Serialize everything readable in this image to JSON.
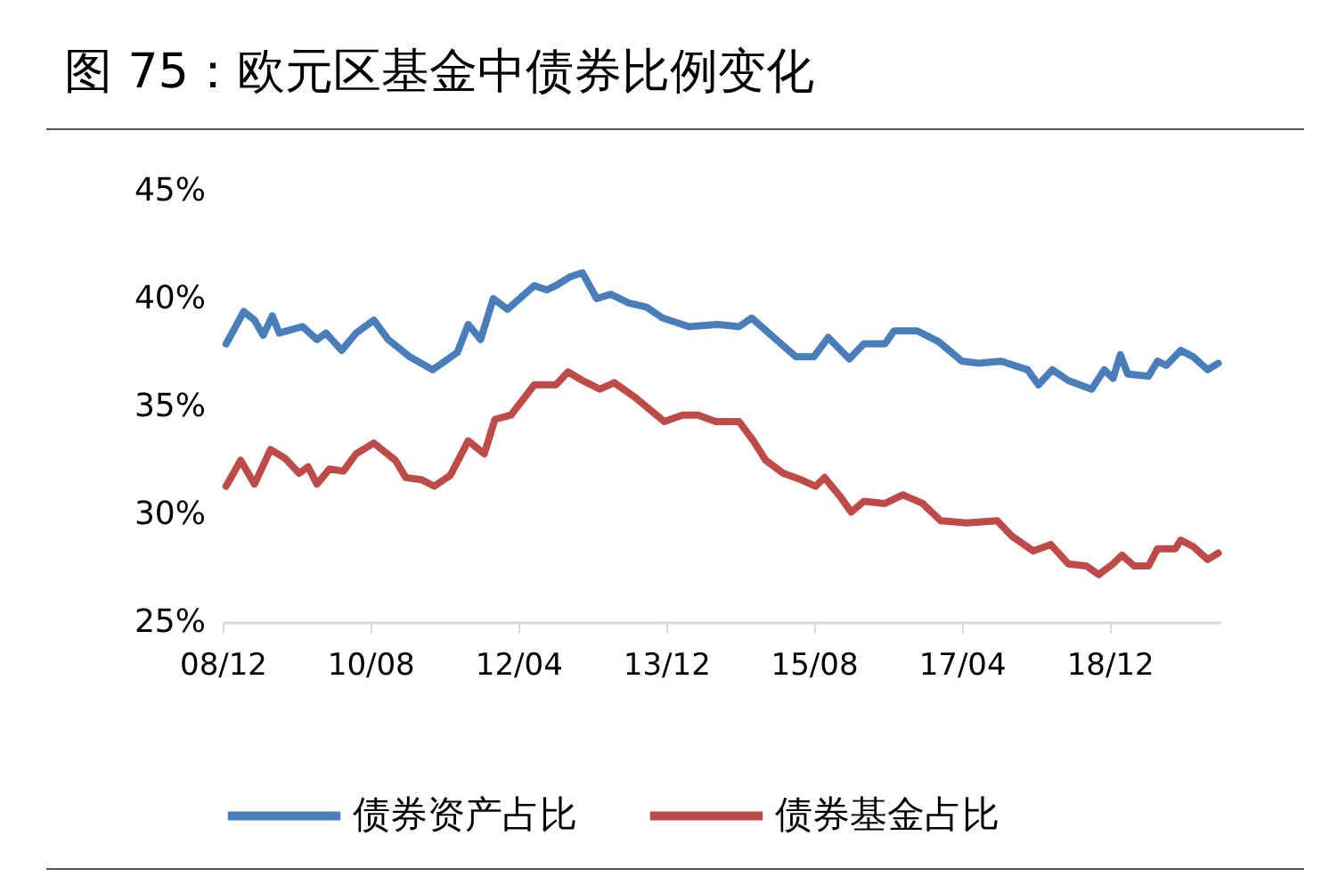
{
  "chart_data": {
    "type": "line",
    "title": "图 75：欧元区基金中债券比例变化",
    "xlim": [
      "2008-12-01",
      "2020-03-01"
    ],
    "xticks": [
      {
        "value": "2008-12",
        "label": "08/12"
      },
      {
        "value": "2010-08",
        "label": "10/08"
      },
      {
        "value": "2012-04",
        "label": "12/04"
      },
      {
        "value": "2013-12",
        "label": "13/12"
      },
      {
        "value": "2015-08",
        "label": "15/08"
      },
      {
        "value": "2017-04",
        "label": "17/04"
      },
      {
        "value": "2018-12",
        "label": "18/12"
      }
    ],
    "ylim": [
      25,
      45
    ],
    "yticks": [
      {
        "value": 25,
        "label": "25%"
      },
      {
        "value": 30,
        "label": "30%"
      },
      {
        "value": 35,
        "label": "35%"
      },
      {
        "value": 40,
        "label": "40%"
      },
      {
        "value": 45,
        "label": "45%"
      }
    ],
    "legend": "bottom",
    "line_style": "solid",
    "marker": "none",
    "series": [
      {
        "name": "债券资产占比",
        "color": "#4a7ebb",
        "x": [
          "2008-12-15",
          "2009-02-26",
          "2009-04-11",
          "2009-05-17",
          "2009-06-23",
          "2009-07-22",
          "2009-10-26",
          "2009-12-24",
          "2010-01-30",
          "2010-04-05",
          "2010-06-03",
          "2010-08-15",
          "2010-10-13",
          "2011-01-10",
          "2011-04-14",
          "2011-06-04",
          "2011-07-25",
          "2011-09-08",
          "2011-10-29",
          "2011-12-20",
          "2012-02-17",
          "2012-06-06",
          "2012-07-27",
          "2012-09-03",
          "2012-10-30",
          "2012-12-21",
          "2013-02-18",
          "2013-04-17",
          "2013-06-29",
          "2013-09-11",
          "2013-11-16",
          "2014-03-05",
          "2014-06-30",
          "2014-09-27",
          "2014-11-18",
          "2015-02-07",
          "2015-05-19",
          "2015-08-01",
          "2015-09-29",
          "2015-12-25",
          "2016-02-23",
          "2016-05-20",
          "2016-06-26",
          "2016-09-30",
          "2016-12-27",
          "2017-04-01",
          "2017-06-13",
          "2017-09-10",
          "2017-12-28",
          "2018-02-11",
          "2018-04-09",
          "2018-06-14",
          "2018-09-18",
          "2018-11-09",
          "2018-12-15",
          "2019-01-14",
          "2019-02-13",
          "2019-05-10",
          "2019-06-16",
          "2019-07-22",
          "2019-09-20",
          "2019-11-10",
          "2020-01-08",
          "2020-02-21"
        ],
        "values": [
          37.9,
          39.4,
          39.0,
          38.3,
          39.2,
          38.4,
          38.7,
          38.1,
          38.4,
          37.6,
          38.4,
          39.0,
          38.1,
          37.3,
          36.7,
          37.1,
          37.5,
          38.8,
          38.1,
          40.0,
          39.5,
          40.6,
          40.4,
          40.6,
          41.0,
          41.2,
          40.0,
          40.2,
          39.8,
          39.6,
          39.1,
          38.7,
          38.8,
          38.7,
          39.1,
          38.3,
          37.3,
          37.3,
          38.2,
          37.2,
          37.9,
          37.9,
          38.5,
          38.5,
          38.0,
          37.1,
          37.0,
          37.1,
          36.7,
          36.0,
          36.7,
          36.2,
          35.8,
          36.7,
          36.3,
          37.4,
          36.5,
          36.4,
          37.1,
          36.9,
          37.6,
          37.3,
          36.7,
          37.0
        ]
      },
      {
        "name": "债券基金占比",
        "color": "#be4b48",
        "x": [
          "2008-12-15",
          "2009-02-13",
          "2009-04-11",
          "2009-06-16",
          "2009-08-14",
          "2009-10-12",
          "2009-11-18",
          "2009-12-24",
          "2010-02-14",
          "2010-04-12",
          "2010-06-03",
          "2010-08-15",
          "2010-11-12",
          "2010-12-25",
          "2011-02-28",
          "2011-04-21",
          "2011-06-26",
          "2011-09-08",
          "2011-11-13",
          "2011-12-27",
          "2012-03-02",
          "2012-06-06",
          "2012-09-03",
          "2012-10-23",
          "2012-12-21",
          "2013-03-03",
          "2013-05-01",
          "2013-07-28",
          "2013-11-23",
          "2014-02-06",
          "2014-04-11",
          "2014-06-23",
          "2014-09-27",
          "2014-11-25",
          "2015-01-15",
          "2015-03-28",
          "2015-06-10",
          "2015-08-08",
          "2015-09-14",
          "2015-11-19",
          "2016-01-02",
          "2016-02-23",
          "2016-05-20",
          "2016-08-02",
          "2016-10-22",
          "2017-01-04",
          "2017-04-22",
          "2017-08-25",
          "2017-10-23",
          "2018-01-20",
          "2018-04-02",
          "2018-06-14",
          "2018-08-27",
          "2018-10-17",
          "2018-12-15",
          "2019-01-21",
          "2019-03-12",
          "2019-05-10",
          "2019-06-16",
          "2019-08-28",
          "2019-09-20",
          "2019-11-10",
          "2020-01-08",
          "2020-02-21"
        ],
        "values": [
          31.3,
          32.5,
          31.4,
          33.0,
          32.6,
          31.9,
          32.2,
          31.4,
          32.1,
          32.0,
          32.8,
          33.3,
          32.5,
          31.7,
          31.6,
          31.3,
          31.8,
          33.4,
          32.8,
          34.4,
          34.6,
          36.0,
          36.0,
          36.6,
          36.2,
          35.8,
          36.1,
          35.4,
          34.3,
          34.6,
          34.6,
          34.3,
          34.3,
          33.4,
          32.5,
          31.9,
          31.6,
          31.3,
          31.7,
          30.8,
          30.1,
          30.6,
          30.5,
          30.9,
          30.5,
          29.7,
          29.6,
          29.7,
          29.0,
          28.3,
          28.6,
          27.7,
          27.6,
          27.2,
          27.7,
          28.1,
          27.6,
          27.6,
          28.4,
          28.4,
          28.8,
          28.5,
          27.9,
          28.2
        ]
      }
    ]
  }
}
